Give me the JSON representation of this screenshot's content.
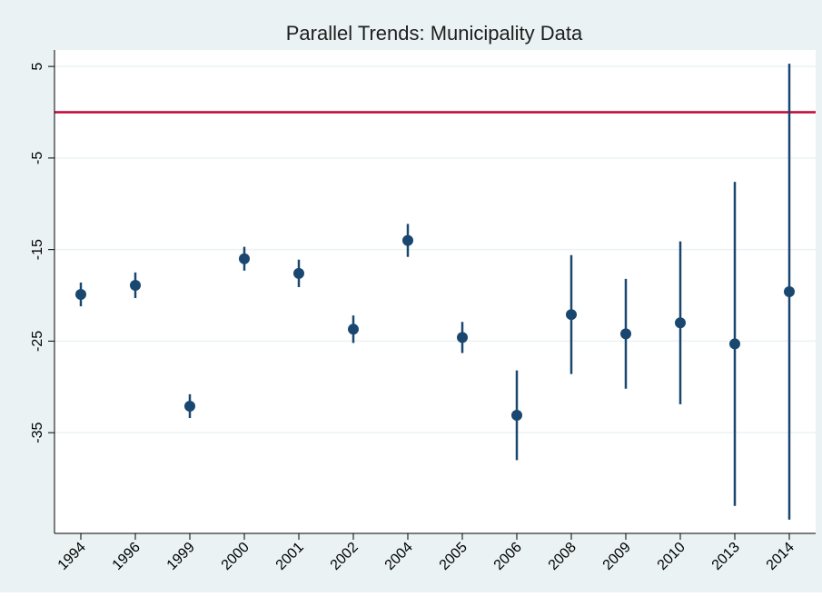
{
  "chart_data": {
    "type": "scatter",
    "title": "Parallel Trends: Municipality Data",
    "categories": [
      "1994",
      "1996",
      "1999",
      "2000",
      "2001",
      "2002",
      "2004",
      "2005",
      "2006",
      "2008",
      "2009",
      "2010",
      "2013",
      "2014"
    ],
    "series": [
      {
        "color": "#1a476f",
        "values": [
          -19.9,
          -18.9,
          -32.1,
          -16.0,
          -17.6,
          -23.7,
          -14.0,
          -24.6,
          -33.1,
          -22.1,
          -24.2,
          -23.0,
          -25.3,
          -19.6
        ],
        "errors": [
          1.3,
          1.4,
          1.3,
          1.3,
          1.5,
          1.5,
          1.8,
          1.7,
          4.9,
          6.5,
          6.0,
          8.9,
          17.7,
          24.9
        ]
      }
    ],
    "ylim": [
      -46,
      6.8
    ],
    "yticks": [
      5,
      -5,
      -15,
      -25,
      -35
    ],
    "grid": true,
    "reference_line": {
      "value": 0,
      "color": "#c10534"
    }
  }
}
